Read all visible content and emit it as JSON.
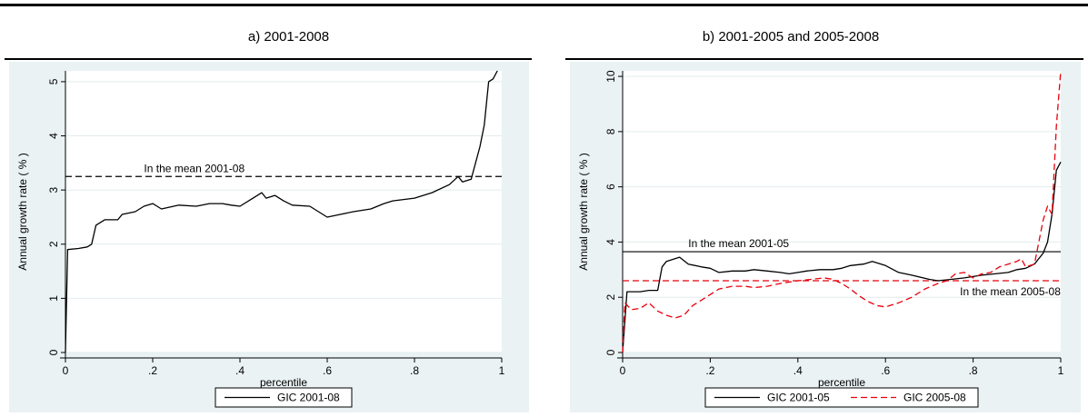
{
  "panels": [
    {
      "title": "a) 2001-2008"
    },
    {
      "title": "b) 2001-2005 and 2005-2008"
    }
  ],
  "chart_data": [
    {
      "type": "line",
      "title": "a) 2001-2008",
      "xlabel": "percentile",
      "ylabel": "Annual growth rate ( % )",
      "xlim": [
        0,
        1
      ],
      "ylim": [
        0,
        5.2
      ],
      "xticks": [
        0,
        0.2,
        0.4,
        0.6,
        0.8,
        1
      ],
      "xtick_labels": [
        "0",
        ".2",
        ".4",
        ".6",
        ".8",
        "1"
      ],
      "yticks": [
        0,
        1,
        2,
        3,
        4,
        5
      ],
      "ytick_labels": [
        "0",
        "1",
        "2",
        "3",
        "4",
        "5"
      ],
      "grid": true,
      "legend_position": "bottom",
      "series": [
        {
          "name": "GIC 2001-08",
          "color": "#000000",
          "dash": "solid",
          "points": [
            [
              0,
              0
            ],
            [
              0.005,
              1.9
            ],
            [
              0.03,
              1.92
            ],
            [
              0.05,
              1.95
            ],
            [
              0.06,
              2.0
            ],
            [
              0.07,
              2.35
            ],
            [
              0.09,
              2.45
            ],
            [
              0.12,
              2.45
            ],
            [
              0.13,
              2.55
            ],
            [
              0.16,
              2.6
            ],
            [
              0.18,
              2.7
            ],
            [
              0.2,
              2.75
            ],
            [
              0.21,
              2.7
            ],
            [
              0.22,
              2.65
            ],
            [
              0.26,
              2.72
            ],
            [
              0.3,
              2.7
            ],
            [
              0.33,
              2.75
            ],
            [
              0.36,
              2.75
            ],
            [
              0.38,
              2.72
            ],
            [
              0.4,
              2.7
            ],
            [
              0.43,
              2.85
            ],
            [
              0.45,
              2.95
            ],
            [
              0.46,
              2.85
            ],
            [
              0.48,
              2.9
            ],
            [
              0.5,
              2.8
            ],
            [
              0.52,
              2.72
            ],
            [
              0.56,
              2.7
            ],
            [
              0.58,
              2.6
            ],
            [
              0.6,
              2.5
            ],
            [
              0.63,
              2.55
            ],
            [
              0.66,
              2.6
            ],
            [
              0.7,
              2.65
            ],
            [
              0.73,
              2.75
            ],
            [
              0.75,
              2.8
            ],
            [
              0.8,
              2.85
            ],
            [
              0.84,
              2.95
            ],
            [
              0.88,
              3.1
            ],
            [
              0.9,
              3.25
            ],
            [
              0.91,
              3.15
            ],
            [
              0.93,
              3.2
            ],
            [
              0.95,
              3.8
            ],
            [
              0.96,
              4.2
            ],
            [
              0.97,
              5.0
            ],
            [
              0.98,
              5.05
            ],
            [
              0.99,
              5.2
            ]
          ]
        }
      ],
      "reference_lines": [
        {
          "y": 3.25,
          "dash": "dashed",
          "color": "#000000",
          "label": "In the mean 2001-08",
          "label_x": 0.18
        }
      ]
    },
    {
      "type": "line",
      "title": "b) 2001-2005 and 2005-2008",
      "xlabel": "percentile",
      "ylabel": "Annual growth rate ( % )",
      "xlim": [
        0,
        1
      ],
      "ylim": [
        0,
        10.2
      ],
      "xticks": [
        0,
        0.2,
        0.4,
        0.6,
        0.8,
        1
      ],
      "xtick_labels": [
        "0",
        ".2",
        ".4",
        ".6",
        ".8",
        "1"
      ],
      "yticks": [
        0,
        2,
        4,
        6,
        8,
        10
      ],
      "ytick_labels": [
        "0",
        "2",
        "4",
        "6",
        "8",
        "10"
      ],
      "grid": true,
      "legend_position": "bottom",
      "series": [
        {
          "name": "GIC 2001-05",
          "color": "#000000",
          "dash": "solid",
          "points": [
            [
              0,
              0
            ],
            [
              0.01,
              2.2
            ],
            [
              0.04,
              2.2
            ],
            [
              0.06,
              2.25
            ],
            [
              0.08,
              2.25
            ],
            [
              0.09,
              3.1
            ],
            [
              0.1,
              3.3
            ],
            [
              0.13,
              3.45
            ],
            [
              0.15,
              3.2
            ],
            [
              0.18,
              3.1
            ],
            [
              0.2,
              3.05
            ],
            [
              0.22,
              2.9
            ],
            [
              0.25,
              2.95
            ],
            [
              0.28,
              2.95
            ],
            [
              0.3,
              3.0
            ],
            [
              0.33,
              2.95
            ],
            [
              0.36,
              2.9
            ],
            [
              0.38,
              2.85
            ],
            [
              0.4,
              2.9
            ],
            [
              0.42,
              2.95
            ],
            [
              0.45,
              3.0
            ],
            [
              0.48,
              3.0
            ],
            [
              0.5,
              3.05
            ],
            [
              0.52,
              3.15
            ],
            [
              0.55,
              3.2
            ],
            [
              0.57,
              3.3
            ],
            [
              0.6,
              3.15
            ],
            [
              0.63,
              2.9
            ],
            [
              0.66,
              2.8
            ],
            [
              0.7,
              2.65
            ],
            [
              0.72,
              2.6
            ],
            [
              0.75,
              2.65
            ],
            [
              0.78,
              2.7
            ],
            [
              0.8,
              2.75
            ],
            [
              0.82,
              2.8
            ],
            [
              0.85,
              2.85
            ],
            [
              0.88,
              2.9
            ],
            [
              0.9,
              3.0
            ],
            [
              0.92,
              3.05
            ],
            [
              0.94,
              3.2
            ],
            [
              0.96,
              3.6
            ],
            [
              0.97,
              4.0
            ],
            [
              0.98,
              5.0
            ],
            [
              0.99,
              6.6
            ],
            [
              1.0,
              6.9
            ]
          ]
        },
        {
          "name": "GIC 2005-08",
          "color": "#e8000b",
          "dash": "dashed",
          "points": [
            [
              0,
              0
            ],
            [
              0.005,
              1.8
            ],
            [
              0.02,
              1.55
            ],
            [
              0.04,
              1.6
            ],
            [
              0.06,
              1.8
            ],
            [
              0.08,
              1.5
            ],
            [
              0.1,
              1.35
            ],
            [
              0.12,
              1.25
            ],
            [
              0.14,
              1.35
            ],
            [
              0.16,
              1.7
            ],
            [
              0.18,
              1.9
            ],
            [
              0.2,
              2.1
            ],
            [
              0.22,
              2.3
            ],
            [
              0.25,
              2.4
            ],
            [
              0.28,
              2.4
            ],
            [
              0.3,
              2.35
            ],
            [
              0.33,
              2.4
            ],
            [
              0.36,
              2.5
            ],
            [
              0.38,
              2.55
            ],
            [
              0.4,
              2.6
            ],
            [
              0.43,
              2.65
            ],
            [
              0.46,
              2.7
            ],
            [
              0.48,
              2.65
            ],
            [
              0.5,
              2.5
            ],
            [
              0.52,
              2.3
            ],
            [
              0.54,
              2.05
            ],
            [
              0.56,
              1.85
            ],
            [
              0.58,
              1.7
            ],
            [
              0.6,
              1.65
            ],
            [
              0.63,
              1.8
            ],
            [
              0.66,
              2.0
            ],
            [
              0.69,
              2.3
            ],
            [
              0.72,
              2.5
            ],
            [
              0.74,
              2.6
            ],
            [
              0.76,
              2.85
            ],
            [
              0.78,
              2.9
            ],
            [
              0.8,
              2.7
            ],
            [
              0.82,
              2.85
            ],
            [
              0.84,
              2.9
            ],
            [
              0.86,
              3.1
            ],
            [
              0.88,
              3.2
            ],
            [
              0.9,
              3.3
            ],
            [
              0.91,
              3.4
            ],
            [
              0.92,
              3.1
            ],
            [
              0.94,
              3.2
            ],
            [
              0.95,
              4.0
            ],
            [
              0.96,
              4.8
            ],
            [
              0.97,
              5.3
            ],
            [
              0.98,
              5.0
            ],
            [
              0.99,
              8.2
            ],
            [
              1.0,
              10.2
            ]
          ]
        }
      ],
      "reference_lines": [
        {
          "y": 3.65,
          "dash": "solid",
          "color": "#000000",
          "label": "In the mean 2001-05",
          "label_x": 0.15
        },
        {
          "y": 2.6,
          "dash": "dashed",
          "color": "#e8000b",
          "label": "In the mean 2005-08",
          "label_x": 0.77
        }
      ]
    }
  ]
}
